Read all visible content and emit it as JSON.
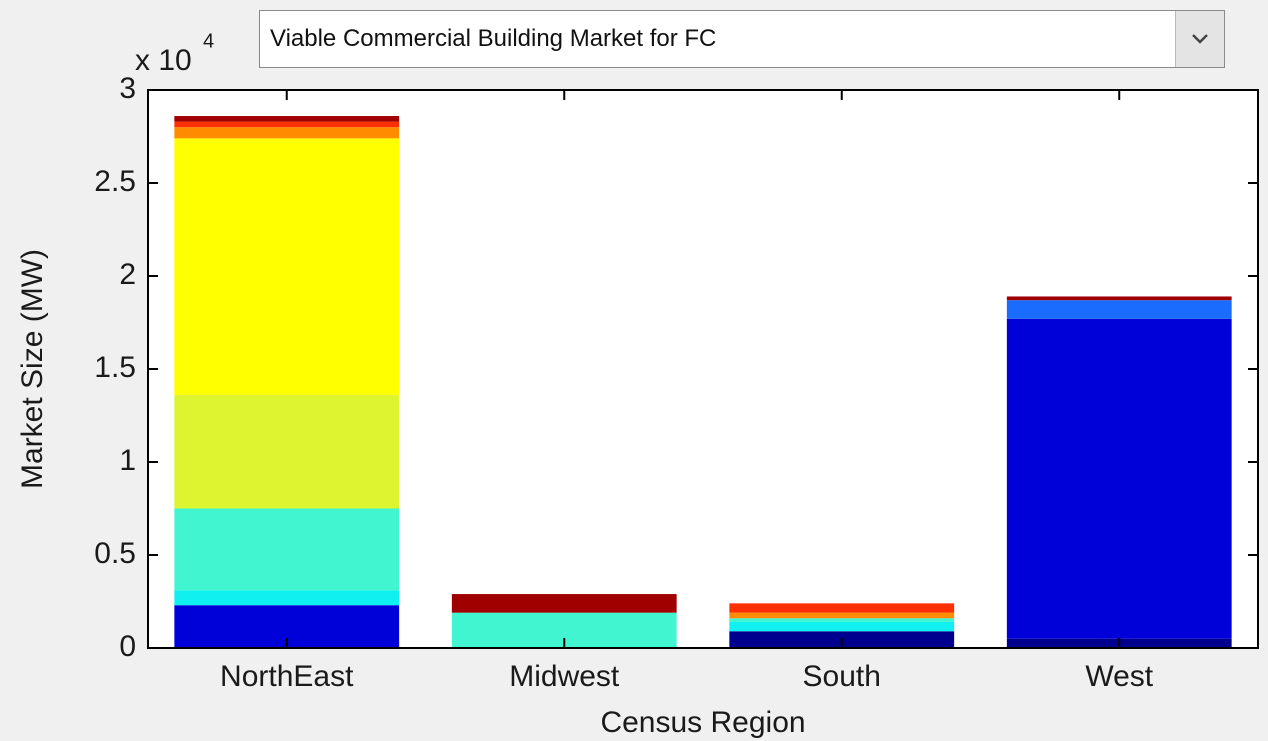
{
  "dropdown": {
    "selected": "Viable Commercial Building Market for FC"
  },
  "chart_data": {
    "type": "stacked_bar",
    "x_label": "Census Region",
    "y_label": "Market Size (MW)",
    "y_multiplier": {
      "base": "x 10",
      "exponent": "4"
    },
    "categories": [
      "NorthEast",
      "Midwest",
      "South",
      "West"
    ],
    "ylim": [
      0,
      3
    ],
    "yticks": [
      0,
      0.5,
      1,
      1.5,
      2,
      2.5,
      3
    ],
    "grid": false,
    "series": [
      {
        "color": "#00008f",
        "values": [
          0,
          0,
          0.09,
          0.05
        ]
      },
      {
        "color": "#0000d8",
        "values": [
          0.23,
          0,
          0,
          1.72
        ]
      },
      {
        "color": "#1a6cff",
        "values": [
          0,
          0,
          0,
          0.1
        ]
      },
      {
        "color": "#10f0f0",
        "values": [
          0.08,
          0,
          0.05,
          0
        ]
      },
      {
        "color": "#40f5d0",
        "values": [
          0.44,
          0.19,
          0.02,
          0
        ]
      },
      {
        "color": "#dcf530",
        "values": [
          0.61,
          0,
          0,
          0
        ]
      },
      {
        "color": "#ffff00",
        "values": [
          1.38,
          0,
          0,
          0
        ]
      },
      {
        "color": "#ff8c00",
        "values": [
          0.06,
          0,
          0.03,
          0
        ]
      },
      {
        "color": "#ff3000",
        "values": [
          0.03,
          0,
          0.05,
          0
        ]
      },
      {
        "color": "#a00000",
        "values": [
          0.03,
          0.1,
          0,
          0.02
        ]
      }
    ]
  }
}
